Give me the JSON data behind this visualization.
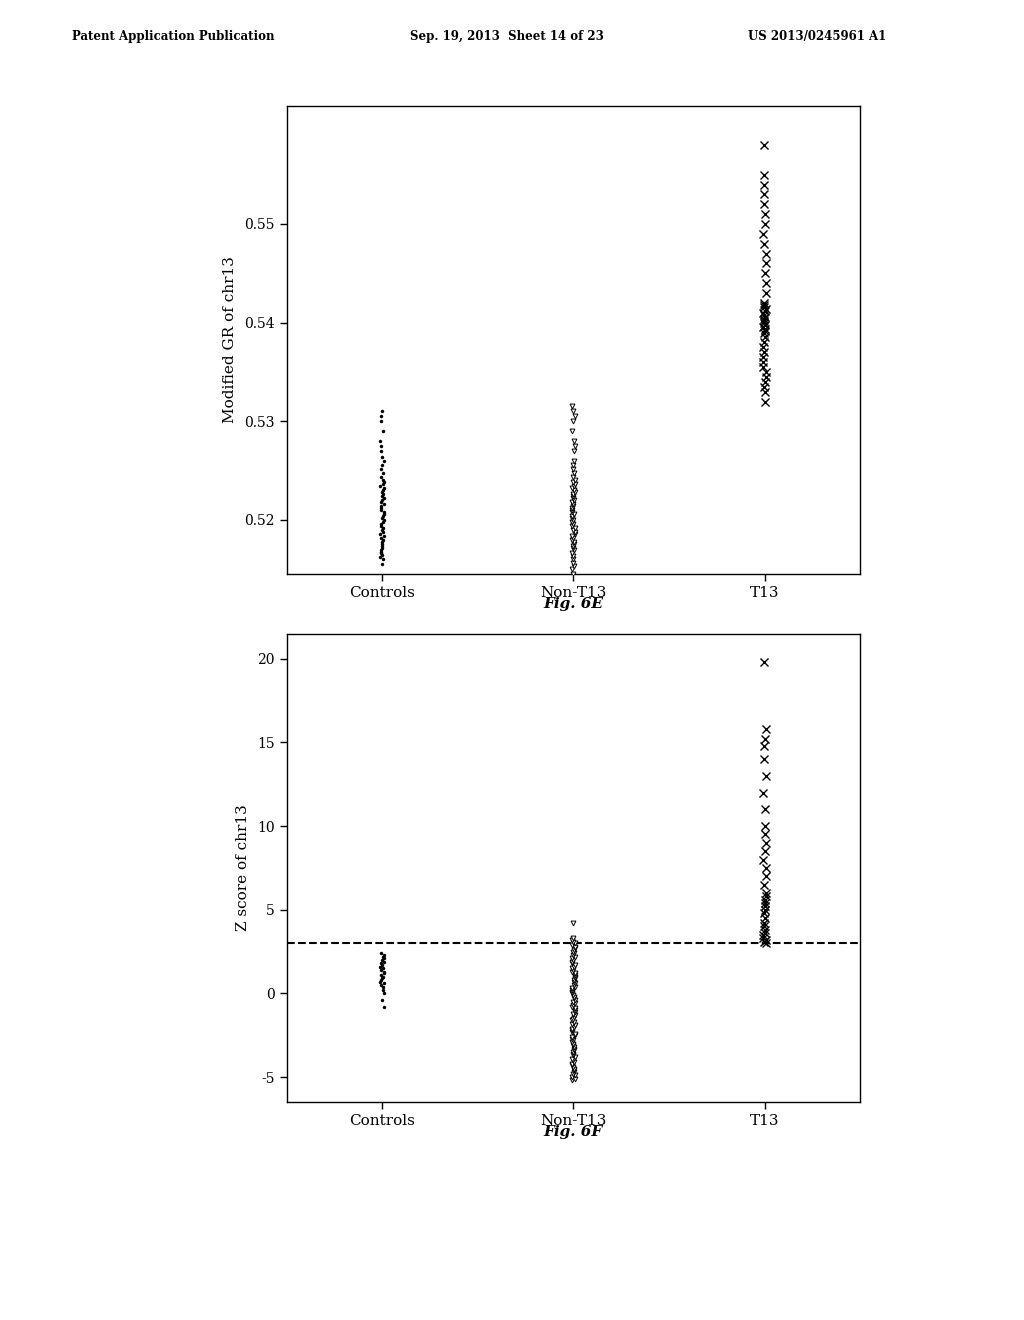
{
  "header_left": "Patent Application Publication",
  "header_center": "Sep. 19, 2013  Sheet 14 of 23",
  "header_right": "US 2013/0245961 A1",
  "fig_e_caption": "Fig. 6E",
  "fig_f_caption": "Fig. 6F",
  "plot_e": {
    "ylabel": "Modified GR of chr13",
    "xlabel_categories": [
      "Controls",
      "Non-T13",
      "T13"
    ],
    "ylim": [
      0.5145,
      0.562
    ],
    "yticks": [
      0.52,
      0.53,
      0.54,
      0.55
    ],
    "controls_dots_y": [
      0.5155,
      0.516,
      0.5162,
      0.5164,
      0.5166,
      0.5168,
      0.517,
      0.5172,
      0.5174,
      0.5176,
      0.5178,
      0.518,
      0.5182,
      0.5184,
      0.5186,
      0.5188,
      0.519,
      0.5192,
      0.5194,
      0.5196,
      0.5198,
      0.52,
      0.5202,
      0.5204,
      0.5206,
      0.5208,
      0.521,
      0.5212,
      0.5214,
      0.5216,
      0.5218,
      0.522,
      0.5222,
      0.5224,
      0.5226,
      0.5228,
      0.523,
      0.5232,
      0.5234,
      0.5236,
      0.5238,
      0.524,
      0.5244,
      0.5248,
      0.5252,
      0.5256,
      0.526,
      0.5264,
      0.527,
      0.5275,
      0.528,
      0.529,
      0.53,
      0.5305,
      0.531
    ],
    "nont13_tri_down_y": [
      0.5145,
      0.515,
      0.5153,
      0.5156,
      0.516,
      0.5163,
      0.5166,
      0.517,
      0.5172,
      0.5174,
      0.5176,
      0.5178,
      0.518,
      0.5182,
      0.5184,
      0.5186,
      0.5188,
      0.519,
      0.5192,
      0.5194,
      0.5196,
      0.5198,
      0.52,
      0.5202,
      0.5204,
      0.5206,
      0.5208,
      0.521,
      0.5212,
      0.5214,
      0.5216,
      0.5218,
      0.522,
      0.5222,
      0.5224,
      0.5226,
      0.5228,
      0.523,
      0.5232,
      0.5234,
      0.5236,
      0.5238,
      0.524,
      0.5244,
      0.5248,
      0.5252,
      0.5256,
      0.526,
      0.527,
      0.5275,
      0.528,
      0.529,
      0.53,
      0.5305,
      0.531,
      0.5315
    ],
    "t13_x_y": [
      0.532,
      0.533,
      0.5335,
      0.534,
      0.5345,
      0.535,
      0.5355,
      0.536,
      0.5365,
      0.537,
      0.5375,
      0.538,
      0.5385,
      0.539,
      0.5392,
      0.5394,
      0.5396,
      0.5398,
      0.54,
      0.5402,
      0.5404,
      0.5406,
      0.5408,
      0.541,
      0.5412,
      0.5414,
      0.5416,
      0.5418,
      0.542,
      0.543,
      0.544,
      0.545,
      0.546,
      0.547,
      0.548,
      0.549,
      0.55,
      0.551,
      0.552,
      0.553,
      0.554,
      0.555,
      0.558
    ]
  },
  "plot_f": {
    "ylabel": "Z score of chr13",
    "xlabel_categories": [
      "Controls",
      "Non-T13",
      "T13"
    ],
    "ylim": [
      -6.5,
      21.5
    ],
    "yticks": [
      -5,
      0,
      5,
      10,
      15,
      20
    ],
    "dashed_line_y": 3.0,
    "controls_dots_y": [
      -0.8,
      -0.4,
      0.0,
      0.2,
      0.4,
      0.5,
      0.6,
      0.7,
      0.8,
      0.9,
      1.0,
      1.1,
      1.2,
      1.3,
      1.4,
      1.5,
      1.6,
      1.7,
      1.8,
      1.9,
      2.0,
      2.1,
      2.2,
      2.3,
      2.4
    ],
    "nont13_tri_down_y": [
      -5.2,
      -5.1,
      -5.0,
      -4.9,
      -4.8,
      -4.7,
      -4.6,
      -4.5,
      -4.4,
      -4.3,
      -4.2,
      -4.1,
      -4.0,
      -3.9,
      -3.8,
      -3.7,
      -3.6,
      -3.5,
      -3.4,
      -3.3,
      -3.2,
      -3.1,
      -3.0,
      -2.9,
      -2.8,
      -2.7,
      -2.6,
      -2.5,
      -2.4,
      -2.3,
      -2.2,
      -2.1,
      -2.0,
      -1.9,
      -1.8,
      -1.7,
      -1.6,
      -1.5,
      -1.4,
      -1.3,
      -1.2,
      -1.1,
      -1.0,
      -0.9,
      -0.8,
      -0.7,
      -0.6,
      -0.5,
      -0.4,
      -0.3,
      -0.2,
      -0.1,
      0.0,
      0.1,
      0.2,
      0.3,
      0.4,
      0.5,
      0.6,
      0.7,
      0.8,
      0.9,
      1.0,
      1.1,
      1.2,
      1.3,
      1.4,
      1.5,
      1.6,
      1.7,
      1.8,
      1.9,
      2.0,
      2.1,
      2.2,
      2.3,
      2.4,
      2.5,
      2.6,
      2.7,
      2.8,
      2.9,
      3.0,
      3.1,
      3.2,
      3.3,
      4.2
    ],
    "t13_x_y": [
      3.0,
      3.1,
      3.2,
      3.3,
      3.5,
      3.6,
      3.8,
      4.0,
      4.2,
      4.5,
      4.8,
      5.0,
      5.2,
      5.4,
      5.6,
      5.8,
      6.0,
      6.5,
      7.0,
      7.5,
      8.0,
      8.5,
      9.0,
      9.5,
      10.0,
      11.0,
      12.0,
      13.0,
      14.0,
      14.8,
      15.2,
      15.8,
      19.8
    ]
  }
}
